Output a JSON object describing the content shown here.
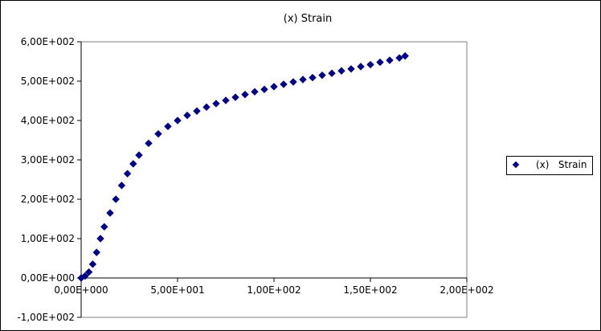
{
  "chart_data": {
    "type": "scatter",
    "title": "(x)   Strain",
    "xlabel": "",
    "ylabel": "",
    "xlim": [
      0,
      200
    ],
    "ylim": [
      -100,
      600
    ],
    "x_ticks": [
      0,
      50,
      100,
      150,
      200
    ],
    "y_ticks": [
      -100,
      0,
      100,
      200,
      300,
      400,
      500,
      600
    ],
    "x_tick_labels": [
      "0,00E+000",
      "5,00E+001",
      "1,00E+002",
      "1,50E+002",
      "2,00E+002"
    ],
    "y_tick_labels": [
      "-1,00E+002",
      "0,00E+000",
      "1,00E+002",
      "2,00E+002",
      "3,00E+002",
      "4,00E+002",
      "5,00E+002",
      "6,00E+002"
    ],
    "grid": false,
    "legend_position": "right",
    "marker": "diamond",
    "marker_color": "#000080",
    "series": [
      {
        "name": "(x)   Strain",
        "color": "#000080",
        "points": [
          [
            0,
            0
          ],
          [
            2,
            5
          ],
          [
            4,
            15
          ],
          [
            6,
            35
          ],
          [
            8,
            65
          ],
          [
            10,
            100
          ],
          [
            12,
            130
          ],
          [
            15,
            165
          ],
          [
            18,
            200
          ],
          [
            21,
            235
          ],
          [
            24,
            265
          ],
          [
            27,
            290
          ],
          [
            30,
            312
          ],
          [
            35,
            342
          ],
          [
            40,
            366
          ],
          [
            45,
            385
          ],
          [
            50,
            400
          ],
          [
            55,
            413
          ],
          [
            60,
            424
          ],
          [
            65,
            434
          ],
          [
            70,
            443
          ],
          [
            75,
            451
          ],
          [
            80,
            459
          ],
          [
            85,
            466
          ],
          [
            90,
            473
          ],
          [
            95,
            479
          ],
          [
            100,
            486
          ],
          [
            105,
            492
          ],
          [
            110,
            498
          ],
          [
            115,
            504
          ],
          [
            120,
            509
          ],
          [
            125,
            515
          ],
          [
            130,
            520
          ],
          [
            135,
            526
          ],
          [
            140,
            531
          ],
          [
            145,
            537
          ],
          [
            150,
            542
          ],
          [
            155,
            548
          ],
          [
            160,
            553
          ],
          [
            165,
            559
          ],
          [
            168,
            564
          ]
        ]
      }
    ]
  }
}
